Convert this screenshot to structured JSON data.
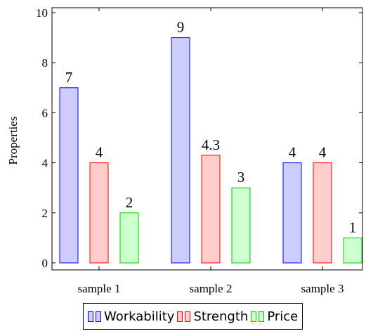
{
  "chart_data": {
    "type": "bar",
    "title": "",
    "xlabel": "",
    "ylabel": "Properties",
    "ylim": [
      0,
      10.2
    ],
    "yticks": [
      0,
      2,
      4,
      6,
      8,
      10
    ],
    "categories": [
      "sample 1",
      "sample 2",
      "sample 3"
    ],
    "series": [
      {
        "name": "Workability",
        "values": [
          7,
          9,
          4
        ],
        "labels": [
          "7",
          "9",
          "4"
        ],
        "fill": "#ccccff",
        "stroke": "#0000ff"
      },
      {
        "name": "Strength",
        "values": [
          4,
          4.3,
          4
        ],
        "labels": [
          "4",
          "4.3",
          "4"
        ],
        "fill": "#ffcccc",
        "stroke": "#ff0000"
      },
      {
        "name": "Price",
        "values": [
          2,
          3,
          1
        ],
        "labels": [
          "2",
          "3",
          "1"
        ],
        "fill": "#ccffcc",
        "stroke": "#00cc00"
      }
    ],
    "grid": false,
    "legend_position": "bottom"
  }
}
